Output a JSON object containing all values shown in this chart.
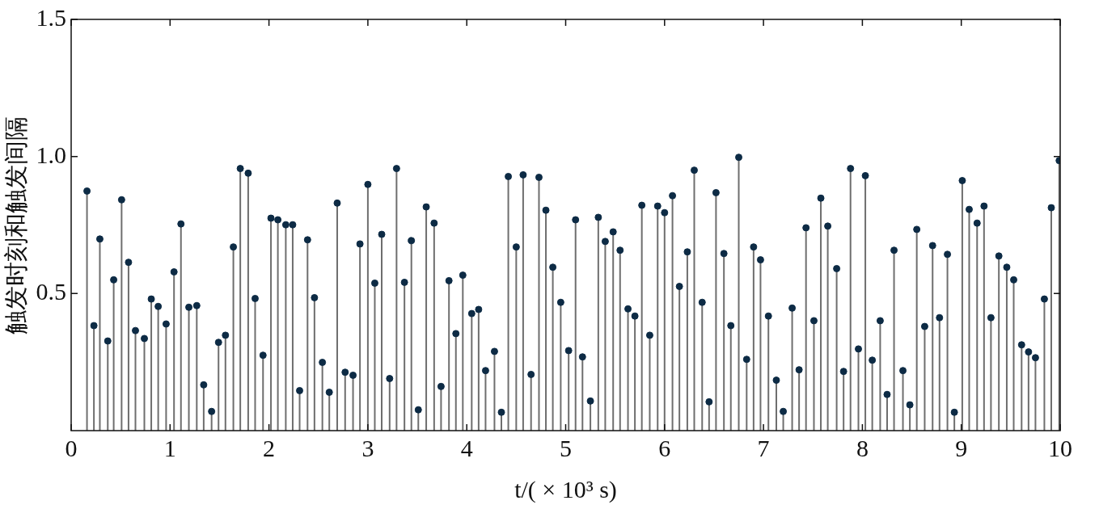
{
  "chart_data": {
    "type": "lollipop",
    "xlabel": "t/( × 10³ s)",
    "ylabel": "触发时刻和触发间隔",
    "color": "#0d2b45",
    "marker": "circle",
    "xlim": [
      0,
      10
    ],
    "xticks": [
      0,
      1,
      2,
      3,
      4,
      5,
      6,
      7,
      8,
      9,
      10
    ],
    "ylim": [
      0,
      1.5
    ],
    "yticks": [
      0.5,
      {
        "value": 1,
        "label": "1.0"
      },
      1.5
    ],
    "x": [
      0.16,
      0.23,
      0.29,
      0.37,
      0.43,
      0.51,
      0.58,
      0.65,
      0.74,
      0.81,
      0.88,
      0.96,
      1.04,
      1.11,
      1.19,
      1.27,
      1.34,
      1.42,
      1.49,
      1.56,
      1.64,
      1.71,
      1.79,
      1.86,
      1.94,
      2.02,
      2.09,
      2.17,
      2.24,
      2.31,
      2.39,
      2.46,
      2.54,
      2.61,
      2.69,
      2.77,
      2.85,
      2.92,
      3.0,
      3.07,
      3.14,
      3.22,
      3.29,
      3.37,
      3.44,
      3.51,
      3.59,
      3.67,
      3.74,
      3.82,
      3.89,
      3.96,
      4.05,
      4.12,
      4.19,
      4.28,
      4.35,
      4.42,
      4.5,
      4.57,
      4.65,
      4.73,
      4.8,
      4.87,
      4.95,
      5.03,
      5.1,
      5.17,
      5.25,
      5.33,
      5.4,
      5.48,
      5.55,
      5.63,
      5.7,
      5.77,
      5.85,
      5.93,
      6.0,
      6.08,
      6.15,
      6.23,
      6.3,
      6.38,
      6.45,
      6.52,
      6.6,
      6.67,
      6.75,
      6.83,
      6.9,
      6.97,
      7.05,
      7.13,
      7.2,
      7.29,
      7.36,
      7.43,
      7.51,
      7.58,
      7.65,
      7.74,
      7.81,
      7.88,
      7.96,
      8.03,
      8.1,
      8.18,
      8.25,
      8.32,
      8.41,
      8.48,
      8.55,
      8.63,
      8.71,
      8.78,
      8.86,
      8.93,
      9.01,
      9.08,
      9.16,
      9.23,
      9.3,
      9.38,
      9.46,
      9.53,
      9.61,
      9.68,
      9.75,
      9.84,
      9.91,
      9.99
    ],
    "values": [
      0.874,
      0.383,
      0.699,
      0.327,
      0.55,
      0.842,
      0.614,
      0.365,
      0.336,
      0.48,
      0.453,
      0.389,
      0.579,
      0.754,
      0.45,
      0.456,
      0.167,
      0.07,
      0.322,
      0.348,
      0.67,
      0.956,
      0.939,
      0.482,
      0.275,
      0.775,
      0.769,
      0.751,
      0.751,
      0.146,
      0.696,
      0.485,
      0.249,
      0.14,
      0.83,
      0.213,
      0.202,
      0.681,
      0.898,
      0.538,
      0.716,
      0.19,
      0.956,
      0.541,
      0.693,
      0.076,
      0.816,
      0.757,
      0.161,
      0.547,
      0.354,
      0.567,
      0.427,
      0.442,
      0.219,
      0.289,
      0.067,
      0.927,
      0.67,
      0.933,
      0.205,
      0.924,
      0.804,
      0.596,
      0.468,
      0.292,
      0.769,
      0.269,
      0.108,
      0.778,
      0.69,
      0.725,
      0.658,
      0.444,
      0.418,
      0.822,
      0.348,
      0.819,
      0.795,
      0.857,
      0.526,
      0.652,
      0.95,
      0.468,
      0.105,
      0.868,
      0.646,
      0.383,
      0.997,
      0.26,
      0.67,
      0.623,
      0.418,
      0.184,
      0.07,
      0.447,
      0.222,
      0.74,
      0.401,
      0.848,
      0.746,
      0.591,
      0.216,
      0.956,
      0.298,
      0.93,
      0.257,
      0.401,
      0.132,
      0.658,
      0.219,
      0.094,
      0.734,
      0.38,
      0.675,
      0.412,
      0.643,
      0.067,
      0.912,
      0.807,
      0.757,
      0.819,
      0.412,
      0.637,
      0.596,
      0.55,
      0.313,
      0.287,
      0.266,
      0.48,
      0.813,
      0.985
    ]
  }
}
